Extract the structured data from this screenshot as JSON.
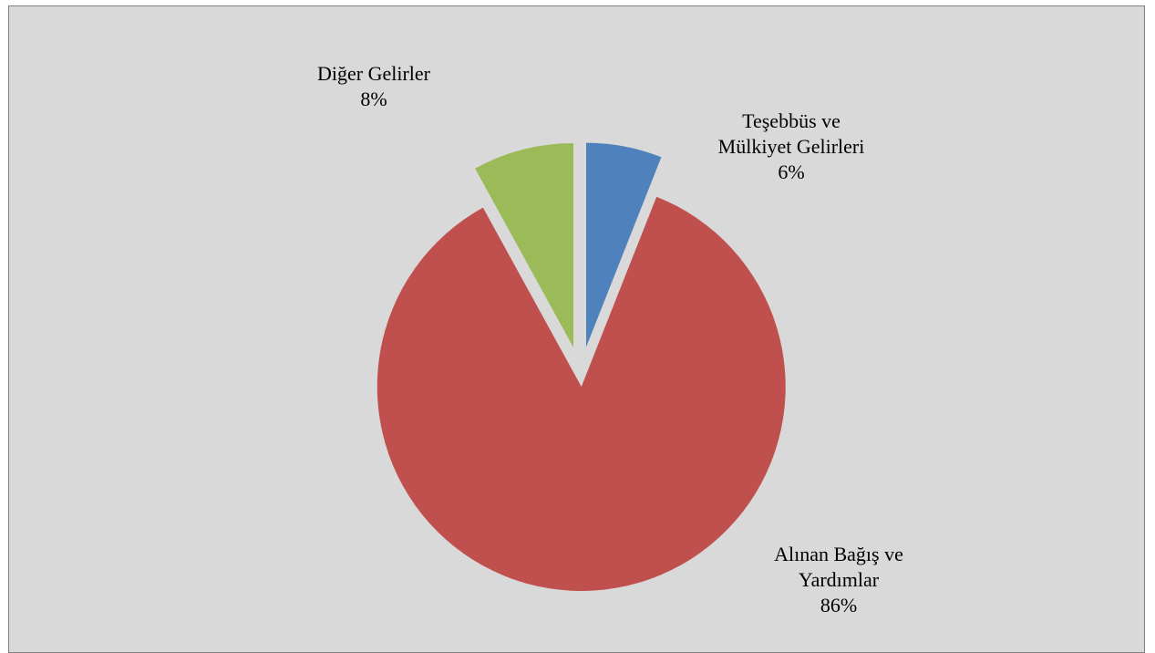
{
  "chart_data": {
    "type": "pie",
    "slices": [
      {
        "label_lines": [
          "Teşebbüs ve",
          "Mülkiyet Gelirleri"
        ],
        "percent_label": "6%",
        "value": 6,
        "color": "#4f81bd",
        "exploded": true
      },
      {
        "label_lines": [
          "Alınan Bağış ve",
          "Yardımlar"
        ],
        "percent_label": "86%",
        "value": 86,
        "color": "#c0504d",
        "exploded": true
      },
      {
        "label_lines": [
          "Diğer Gelirler"
        ],
        "percent_label": "8%",
        "value": 8,
        "color": "#9bbb59",
        "exploded": true
      }
    ],
    "background": "#d9d9d9"
  }
}
